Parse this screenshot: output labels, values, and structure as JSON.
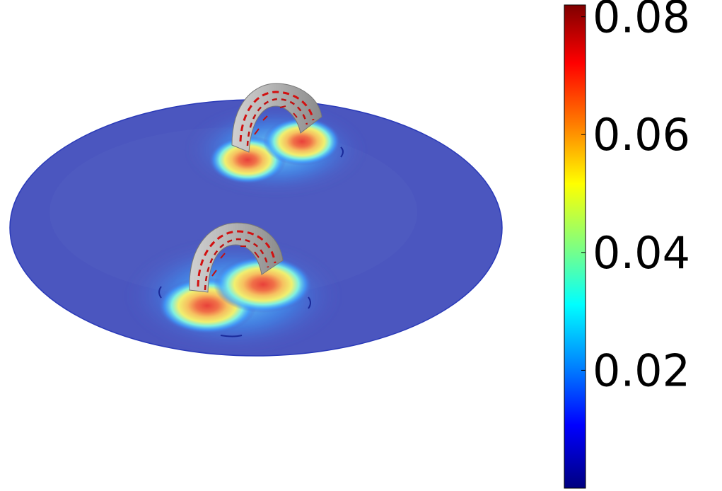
{
  "figure": {
    "type": "3d-field-plot",
    "description_colormap": "jet",
    "colorbar": {
      "min": 0,
      "max": 0.082,
      "ticks": [
        {
          "value": 0.08,
          "label": "0.08"
        },
        {
          "value": 0.06,
          "label": "0.06"
        },
        {
          "value": 0.04,
          "label": "0.04"
        },
        {
          "value": 0.02,
          "label": "0.02"
        }
      ],
      "colors": [
        "#7f0000",
        "#ff0000",
        "#ff8000",
        "#ffff00",
        "#80ff80",
        "#00ffff",
        "#0080ff",
        "#0000ff",
        "#00007f"
      ]
    },
    "coils": [
      {
        "hotspots": [
          "left",
          "right"
        ]
      },
      {
        "hotspots": [
          "left",
          "right"
        ]
      }
    ]
  }
}
